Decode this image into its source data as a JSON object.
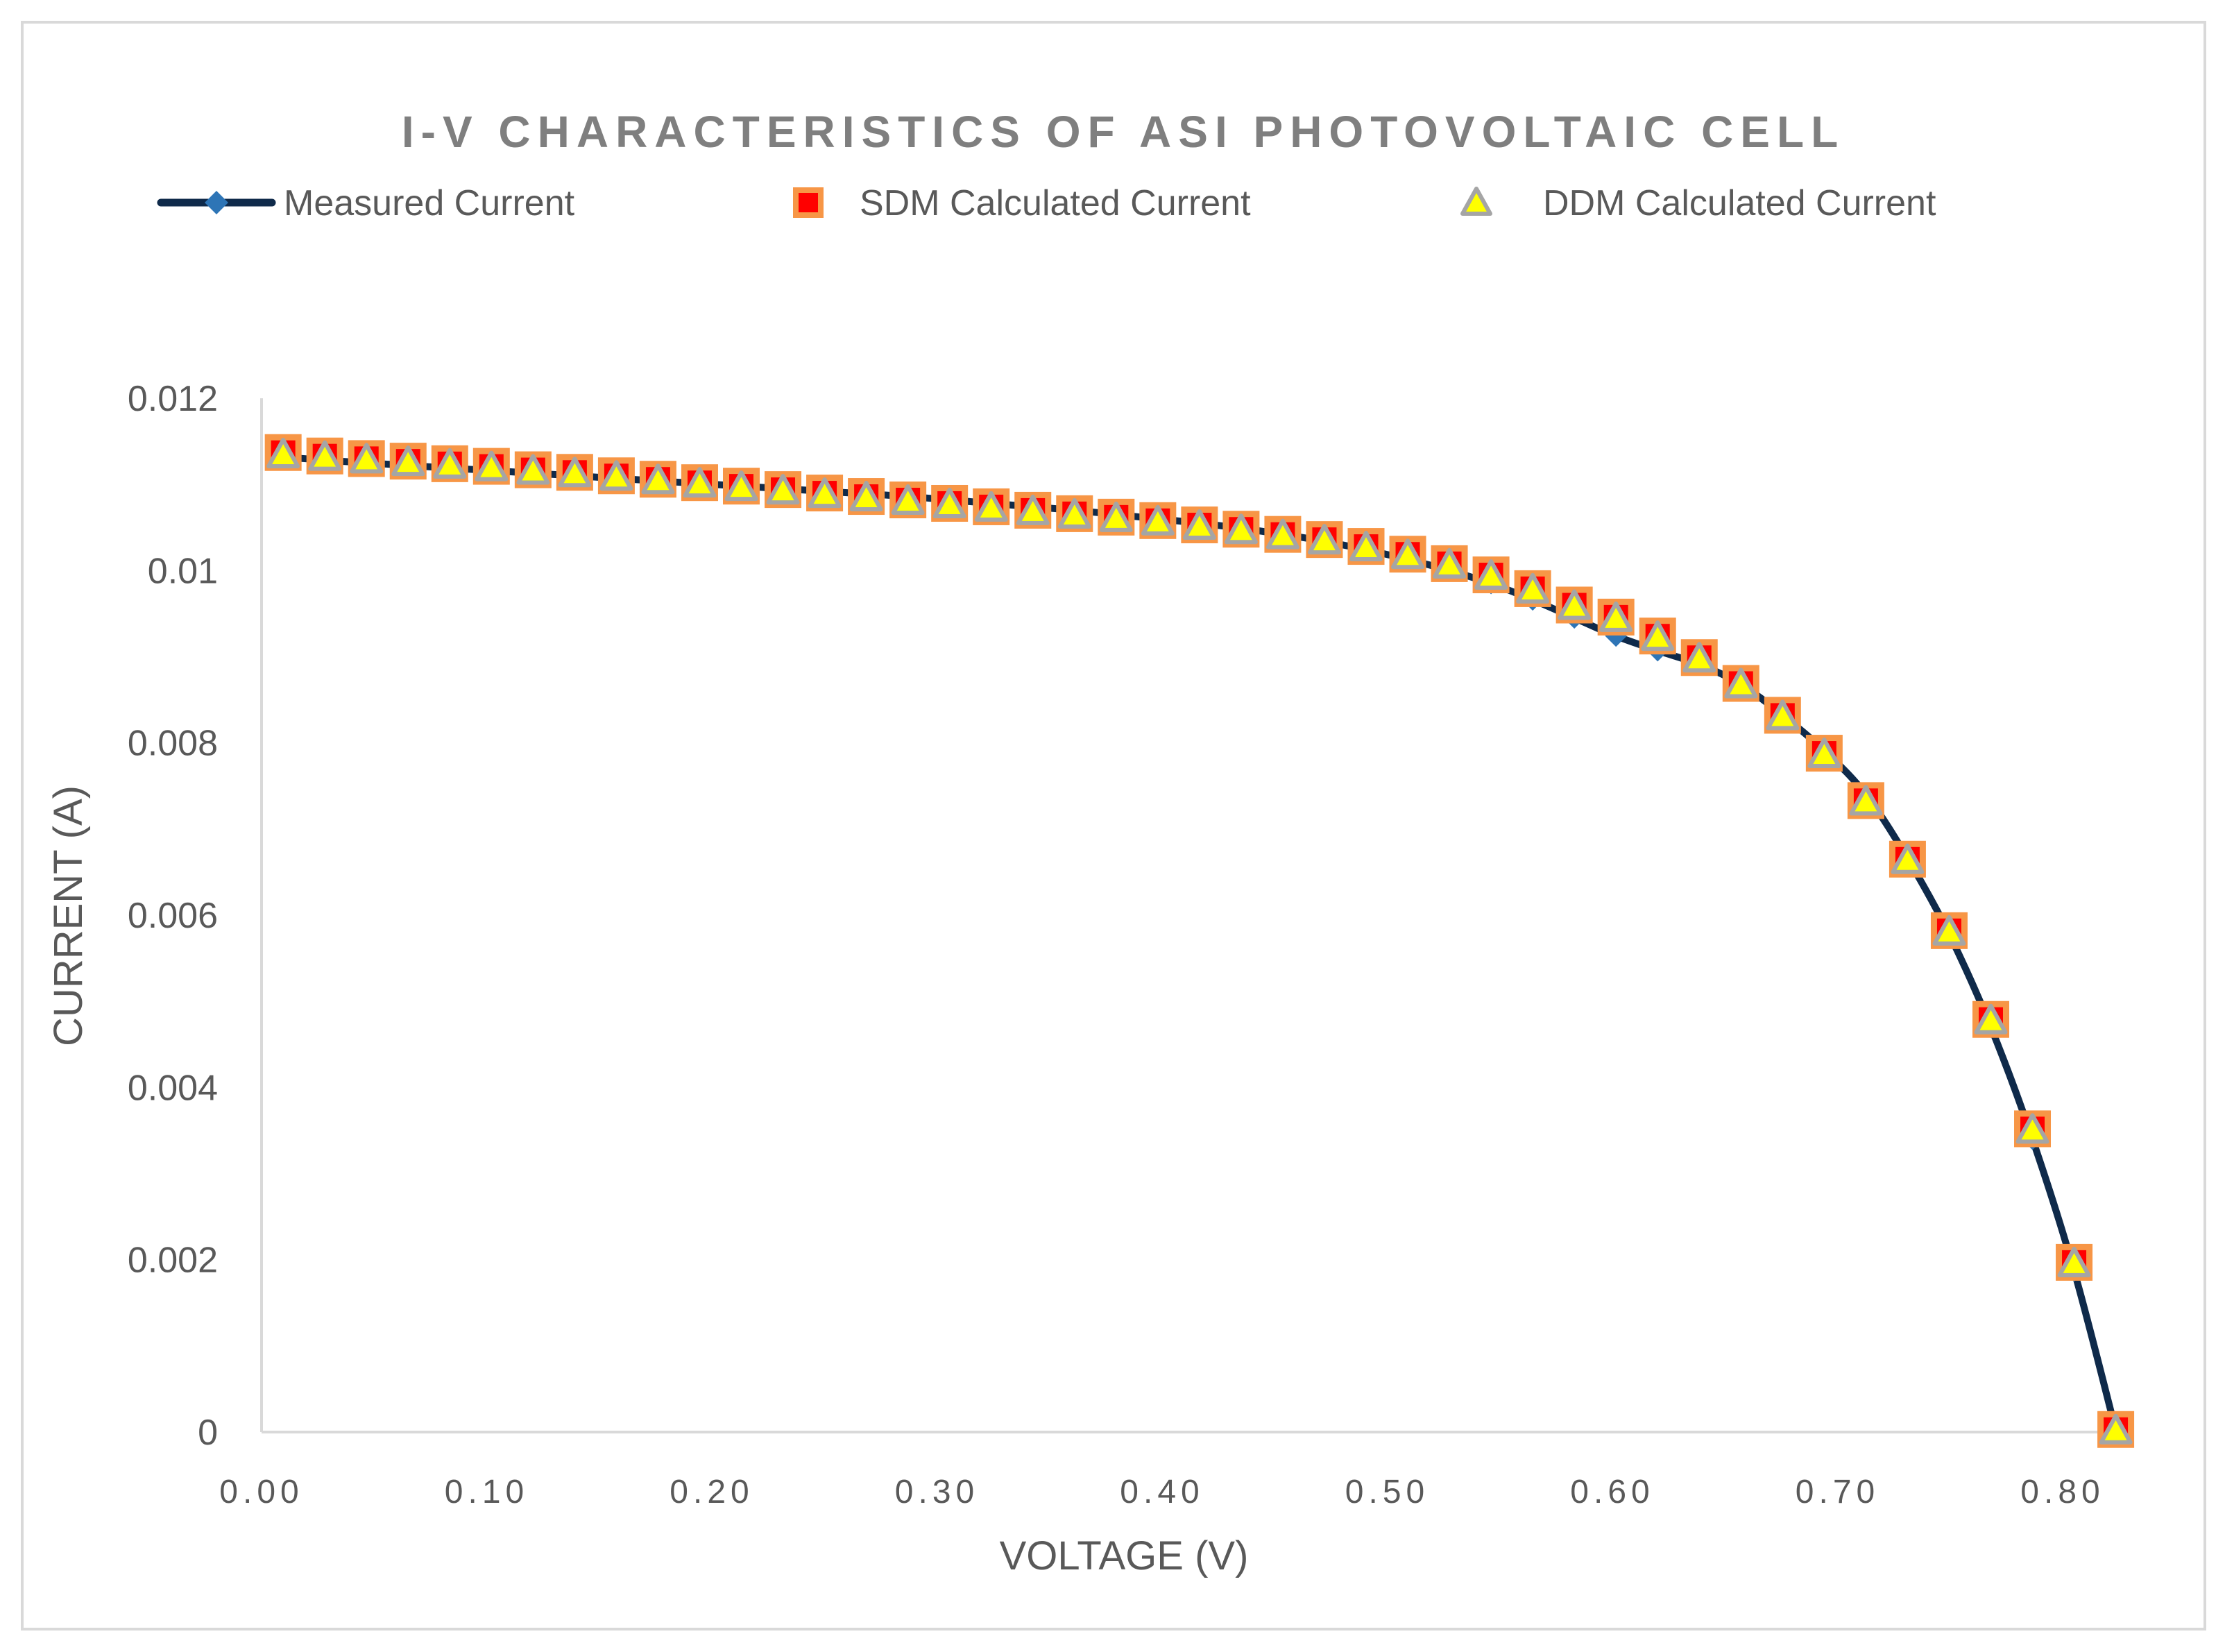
{
  "chart_data": {
    "type": "line",
    "title": "I-V CHARACTERISTICS OF ASI PHOTOVOLTAIC CELL",
    "xlabel": "VOLTAGE (V)",
    "ylabel": "CURRENT (A)",
    "xlim": [
      0,
      0.84
    ],
    "ylim": [
      0,
      0.012
    ],
    "grid": false,
    "legend_position": "top",
    "x_ticks": [
      {
        "value": 0.0,
        "label": "0.00"
      },
      {
        "value": 0.1,
        "label": "0.10"
      },
      {
        "value": 0.2,
        "label": "0.20"
      },
      {
        "value": 0.3,
        "label": "0.30"
      },
      {
        "value": 0.4,
        "label": "0.40"
      },
      {
        "value": 0.5,
        "label": "0.50"
      },
      {
        "value": 0.6,
        "label": "0.60"
      },
      {
        "value": 0.7,
        "label": "0.70"
      },
      {
        "value": 0.8,
        "label": "0.80"
      }
    ],
    "y_ticks": [
      {
        "value": 0,
        "label": "0"
      },
      {
        "value": 0.002,
        "label": "0.002"
      },
      {
        "value": 0.004,
        "label": "0.004"
      },
      {
        "value": 0.006,
        "label": "0.006"
      },
      {
        "value": 0.008,
        "label": "0.008"
      },
      {
        "value": 0.01,
        "label": "0.01"
      },
      {
        "value": 0.012,
        "label": "0.012"
      }
    ],
    "x": [
      0.0096,
      0.0281,
      0.0466,
      0.0651,
      0.0836,
      0.1021,
      0.1206,
      0.1391,
      0.1576,
      0.1761,
      0.1946,
      0.2131,
      0.2316,
      0.2501,
      0.2686,
      0.2871,
      0.3056,
      0.3241,
      0.3426,
      0.3611,
      0.3796,
      0.3981,
      0.4166,
      0.4351,
      0.4536,
      0.4721,
      0.4906,
      0.5091,
      0.5276,
      0.5461,
      0.5646,
      0.5831,
      0.6016,
      0.6201,
      0.6386,
      0.6571,
      0.6756,
      0.6941,
      0.7126,
      0.7311,
      0.7496,
      0.7681,
      0.7866,
      0.8051,
      0.8236
    ],
    "series": [
      {
        "name": "Measured Current",
        "style": "line-diamond",
        "line_color": "#0f2a4a",
        "marker_color": "#2e75b6",
        "values": [
          0.01132,
          0.01128,
          0.01125,
          0.01122,
          0.01119,
          0.01116,
          0.01113,
          0.0111,
          0.01107,
          0.01104,
          0.01101,
          0.01098,
          0.01095,
          0.01092,
          0.01089,
          0.01086,
          0.01082,
          0.01078,
          0.01074,
          0.0107,
          0.01065,
          0.0106,
          0.01055,
          0.01049,
          0.01042,
          0.01034,
          0.01024,
          0.01013,
          0.01,
          0.00985,
          0.00966,
          0.00945,
          0.00924,
          0.00907,
          0.00891,
          0.00868,
          0.00832,
          0.00791,
          0.0074,
          0.00666,
          0.00578,
          0.0047,
          0.0034,
          0.00187,
          2e-05
        ]
      },
      {
        "name": "SDM Calculated Current",
        "style": "square",
        "marker_fill": "#ff0000",
        "marker_edge": "#f79646",
        "values": [
          0.01137,
          0.01133,
          0.0113,
          0.01127,
          0.01124,
          0.01121,
          0.01117,
          0.01114,
          0.0111,
          0.01106,
          0.01102,
          0.01098,
          0.01094,
          0.0109,
          0.01086,
          0.01082,
          0.01078,
          0.01074,
          0.0107,
          0.01066,
          0.01062,
          0.01058,
          0.01053,
          0.01048,
          0.01042,
          0.01036,
          0.01028,
          0.01019,
          0.01008,
          0.00995,
          0.00979,
          0.0096,
          0.00946,
          0.00924,
          0.00899,
          0.00869,
          0.00832,
          0.00788,
          0.00733,
          0.00665,
          0.00582,
          0.00479,
          0.00352,
          0.00197,
          3e-05
        ]
      },
      {
        "name": "DDM Calculated Current",
        "style": "triangle",
        "marker_fill": "#ffff00",
        "marker_edge": "#a5a5a5",
        "values": [
          0.01134,
          0.01131,
          0.01128,
          0.01125,
          0.01122,
          0.01119,
          0.01115,
          0.01112,
          0.01108,
          0.01104,
          0.011,
          0.01096,
          0.01092,
          0.01088,
          0.01084,
          0.0108,
          0.01076,
          0.01072,
          0.01068,
          0.01064,
          0.0106,
          0.01056,
          0.01051,
          0.01046,
          0.0104,
          0.01034,
          0.01026,
          0.01017,
          0.01006,
          0.00993,
          0.00977,
          0.00958,
          0.00944,
          0.00922,
          0.00897,
          0.00867,
          0.0083,
          0.00786,
          0.00731,
          0.00663,
          0.0058,
          0.00477,
          0.0035,
          0.00195,
          1e-05
        ]
      }
    ]
  }
}
